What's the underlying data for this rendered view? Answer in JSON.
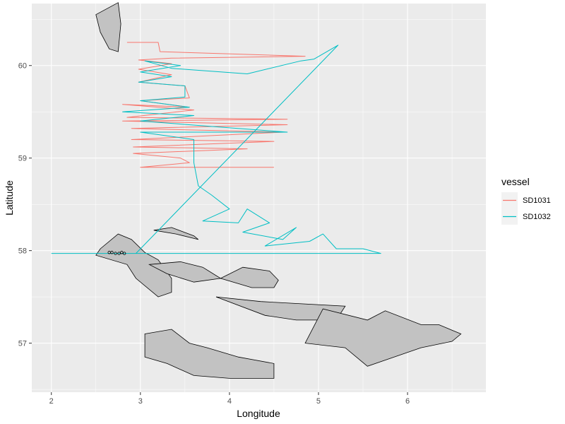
{
  "chart_data": {
    "type": "line",
    "title": "",
    "xlabel": "Longitude",
    "ylabel": "Latitude",
    "xlim": [
      1.78,
      6.88
    ],
    "ylim": [
      56.47,
      60.67
    ],
    "x_ticks": [
      2,
      3,
      4,
      5,
      6
    ],
    "x_tick_labels": [
      "2",
      "3",
      "4",
      "5",
      "6"
    ],
    "y_ticks": [
      57,
      58,
      59,
      60
    ],
    "y_tick_labels": [
      "57",
      "58",
      "59",
      "60"
    ],
    "grid": true,
    "legend": {
      "title": "vessel",
      "placement": "right"
    },
    "series": [
      {
        "name": "SD1031",
        "color": "#F8766D",
        "points": [
          [
            2.85,
            60.25
          ],
          [
            3.2,
            60.25
          ],
          [
            3.22,
            60.15
          ],
          [
            4.85,
            60.1
          ],
          [
            3.35,
            60.08
          ],
          [
            2.98,
            60.06
          ],
          [
            3.35,
            60.02
          ],
          [
            2.98,
            59.96
          ],
          [
            3.35,
            59.9
          ],
          [
            2.98,
            59.82
          ],
          [
            3.5,
            59.78
          ],
          [
            3.55,
            59.65
          ],
          [
            3.0,
            59.62
          ],
          [
            3.55,
            59.55
          ],
          [
            2.8,
            59.58
          ],
          [
            3.6,
            59.52
          ],
          [
            2.85,
            59.44
          ],
          [
            4.65,
            59.42
          ],
          [
            2.8,
            59.4
          ],
          [
            4.65,
            59.36
          ],
          [
            2.9,
            59.32
          ],
          [
            4.6,
            59.28
          ],
          [
            2.9,
            59.2
          ],
          [
            4.5,
            59.18
          ],
          [
            2.92,
            59.12
          ],
          [
            4.2,
            59.1
          ],
          [
            2.92,
            59.05
          ],
          [
            3.45,
            59.0
          ],
          [
            3.55,
            58.95
          ],
          [
            3.0,
            58.9
          ],
          [
            4.5,
            58.9
          ]
        ]
      },
      {
        "name": "SD1032",
        "color": "#00BFC4",
        "points": [
          [
            2.0,
            57.97
          ],
          [
            2.5,
            57.97
          ],
          [
            2.95,
            57.97
          ],
          [
            5.22,
            60.22
          ],
          [
            4.95,
            60.07
          ],
          [
            4.8,
            60.05
          ],
          [
            4.2,
            59.91
          ],
          [
            3.35,
            59.97
          ],
          [
            3.05,
            60.05
          ],
          [
            3.45,
            60.0
          ],
          [
            3.0,
            59.93
          ],
          [
            3.35,
            59.88
          ],
          [
            2.98,
            59.82
          ],
          [
            3.5,
            59.78
          ],
          [
            3.5,
            59.66
          ],
          [
            3.0,
            59.62
          ],
          [
            3.55,
            59.55
          ],
          [
            2.8,
            59.5
          ],
          [
            3.6,
            59.46
          ],
          [
            3.0,
            59.4
          ],
          [
            4.65,
            59.28
          ],
          [
            3.0,
            59.28
          ],
          [
            3.6,
            59.2
          ],
          [
            3.6,
            58.95
          ],
          [
            3.65,
            58.7
          ],
          [
            3.8,
            58.6
          ],
          [
            4.0,
            58.45
          ],
          [
            3.7,
            58.32
          ],
          [
            4.1,
            58.3
          ],
          [
            4.2,
            58.45
          ],
          [
            4.45,
            58.3
          ],
          [
            4.15,
            58.2
          ],
          [
            4.6,
            58.12
          ],
          [
            4.75,
            58.25
          ],
          [
            4.4,
            58.05
          ],
          [
            4.9,
            58.1
          ],
          [
            5.05,
            58.18
          ],
          [
            5.2,
            58.02
          ],
          [
            5.5,
            58.02
          ],
          [
            5.7,
            57.97
          ],
          [
            2.7,
            57.97
          ]
        ]
      }
    ],
    "markers": [
      [
        2.65,
        57.98
      ],
      [
        2.68,
        57.98
      ],
      [
        2.72,
        57.97
      ],
      [
        2.76,
        57.97
      ],
      [
        2.79,
        57.98
      ],
      [
        2.82,
        57.97
      ]
    ],
    "polygons": [
      [
        [
          2.5,
          60.55
        ],
        [
          2.75,
          60.68
        ],
        [
          2.78,
          60.45
        ],
        [
          2.75,
          60.15
        ],
        [
          2.65,
          60.18
        ],
        [
          2.55,
          60.36
        ]
      ],
      [
        [
          3.15,
          58.22
        ],
        [
          3.35,
          58.25
        ],
        [
          3.6,
          58.16
        ],
        [
          3.65,
          58.12
        ],
        [
          3.4,
          58.18
        ]
      ],
      [
        [
          2.55,
          58.02
        ],
        [
          2.75,
          58.18
        ],
        [
          2.9,
          58.12
        ],
        [
          3.05,
          57.98
        ],
        [
          3.2,
          57.9
        ],
        [
          3.35,
          57.7
        ],
        [
          3.35,
          57.55
        ],
        [
          3.2,
          57.5
        ],
        [
          2.95,
          57.7
        ],
        [
          2.85,
          57.85
        ],
        [
          2.5,
          57.95
        ]
      ],
      [
        [
          3.1,
          57.85
        ],
        [
          3.45,
          57.88
        ],
        [
          3.7,
          57.82
        ],
        [
          3.9,
          57.7
        ],
        [
          3.6,
          57.66
        ],
        [
          3.3,
          57.75
        ]
      ],
      [
        [
          3.9,
          57.7
        ],
        [
          4.15,
          57.82
        ],
        [
          4.45,
          57.78
        ],
        [
          4.55,
          57.68
        ],
        [
          4.5,
          57.6
        ],
        [
          4.25,
          57.6
        ]
      ],
      [
        [
          3.85,
          57.5
        ],
        [
          4.35,
          57.45
        ],
        [
          5.3,
          57.4
        ],
        [
          5.2,
          57.25
        ],
        [
          4.75,
          57.25
        ],
        [
          4.4,
          57.3
        ]
      ],
      [
        [
          4.85,
          57.0
        ],
        [
          5.05,
          57.37
        ],
        [
          5.55,
          57.25
        ],
        [
          5.75,
          57.35
        ],
        [
          6.15,
          57.2
        ],
        [
          6.35,
          57.2
        ],
        [
          6.6,
          57.1
        ],
        [
          6.5,
          57.02
        ],
        [
          6.15,
          56.95
        ],
        [
          5.55,
          56.75
        ],
        [
          5.3,
          56.95
        ]
      ],
      [
        [
          3.05,
          57.1
        ],
        [
          3.35,
          57.15
        ],
        [
          3.55,
          57.0
        ],
        [
          3.75,
          56.95
        ],
        [
          4.1,
          56.85
        ],
        [
          4.5,
          56.78
        ],
        [
          4.5,
          56.62
        ],
        [
          4.0,
          56.62
        ],
        [
          3.6,
          56.65
        ],
        [
          3.3,
          56.78
        ],
        [
          3.05,
          56.85
        ]
      ]
    ]
  }
}
